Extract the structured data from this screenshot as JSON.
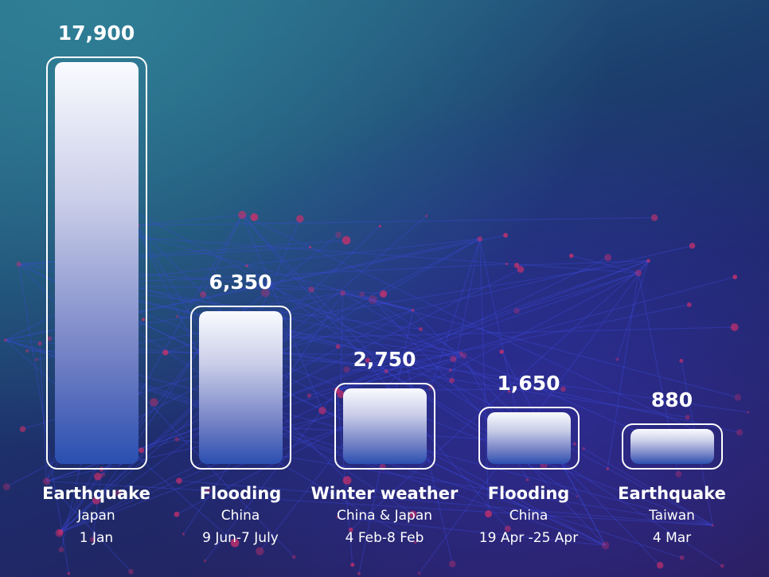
{
  "chart_data": {
    "type": "bar",
    "title": "",
    "xlabel": "",
    "ylabel": "",
    "categories": [
      {
        "event": "Earthquake",
        "location": "Japan",
        "date": "1 Jan"
      },
      {
        "event": "Flooding",
        "location": "China",
        "date": "9 Jun-7 July"
      },
      {
        "event": "Winter weather",
        "location": "China & Japan",
        "date": "4 Feb-8 Feb"
      },
      {
        "event": "Flooding",
        "location": "China",
        "date": "19 Apr -25 Apr"
      },
      {
        "event": "Earthquake",
        "location": "Taiwan",
        "date": "4 Mar"
      }
    ],
    "values": [
      17900,
      6350,
      2750,
      1650,
      880
    ],
    "value_labels": [
      "17,900",
      "6,350",
      "2,750",
      "1,650",
      "880"
    ],
    "grid": false
  }
}
